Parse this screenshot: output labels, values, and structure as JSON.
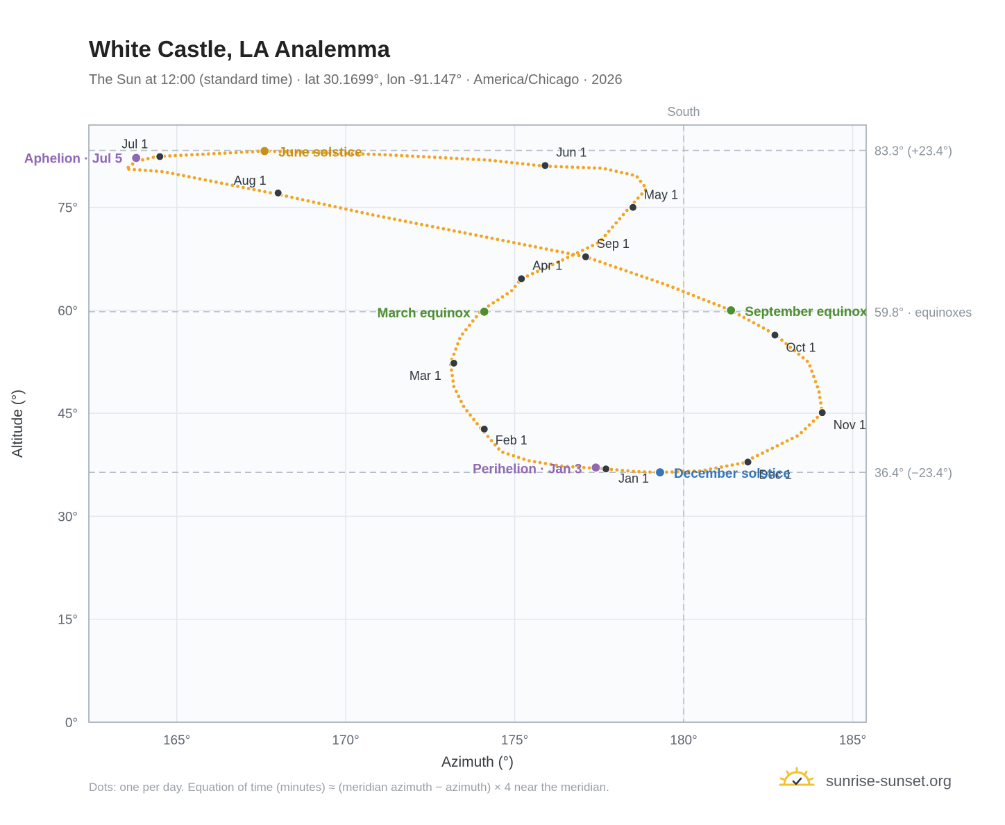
{
  "header": {
    "title": "White Castle, LA Analemma",
    "subtitle": "The Sun at 12:00 (standard time) · lat 30.1699°, lon -91.147° · America/Chicago · 2026"
  },
  "footer": {
    "note": "Dots: one per day. Equation of time (minutes) ≈ (meridian azimuth − azimuth) × 4 near the meridian.",
    "brand": "sunrise-sunset.org",
    "brand_icon": "sun-logo-icon"
  },
  "colors": {
    "curve": "#f2a521",
    "month_marker": "#333a40",
    "solstice_june": "#c8901a",
    "equinox": "#4f8f2f",
    "solstice_december": "#3575b8",
    "apsis": "#8f68b5",
    "plot_background": "#f9fbfd",
    "grid": "#e2e8ee",
    "reference_line": "#b4bec8"
  },
  "chart_data": {
    "type": "scatter",
    "xlabel": "Azimuth (°)",
    "ylabel": "Altitude (°)",
    "xlim": [
      162.4,
      185.4
    ],
    "ylim": [
      0,
      87
    ],
    "x_ticks": [
      165,
      170,
      175,
      180,
      185
    ],
    "x_tick_labels": [
      "165°",
      "170°",
      "175°",
      "180°",
      "185°"
    ],
    "y_ticks": [
      0,
      15,
      30,
      45,
      60,
      75
    ],
    "y_tick_labels": [
      "0°",
      "15°",
      "30°",
      "45°",
      "60°",
      "75°"
    ],
    "grid": true,
    "series": [
      {
        "points": [
          [
            177.7,
            36.9
          ],
          [
            176.4,
            37.3
          ],
          [
            175.4,
            38.1
          ],
          [
            174.6,
            39.4
          ],
          [
            174.0,
            42.8
          ],
          [
            173.5,
            45.9
          ],
          [
            173.2,
            48.9
          ],
          [
            173.1,
            52.3
          ],
          [
            173.4,
            56.2
          ],
          [
            174.0,
            59.9
          ],
          [
            174.9,
            62.8
          ],
          [
            175.2,
            64.6
          ],
          [
            176.4,
            67.3
          ],
          [
            177.5,
            69.9
          ],
          [
            178.4,
            75.0
          ],
          [
            178.9,
            77.7
          ],
          [
            178.6,
            79.6
          ],
          [
            177.6,
            80.7
          ],
          [
            175.9,
            81.0
          ],
          [
            174.2,
            81.9
          ],
          [
            171.0,
            82.7
          ],
          [
            167.6,
            83.2
          ],
          [
            164.4,
            82.4
          ],
          [
            163.8,
            81.7
          ],
          [
            163.5,
            80.6
          ],
          [
            164.6,
            80.2
          ],
          [
            167.9,
            77.0
          ],
          [
            170.8,
            73.9
          ],
          [
            173.6,
            71.2
          ],
          [
            177.1,
            67.8
          ],
          [
            179.5,
            63.7
          ],
          [
            181.4,
            60.0
          ],
          [
            182.7,
            56.5
          ],
          [
            183.7,
            52.4
          ],
          [
            184.0,
            48.3
          ],
          [
            184.1,
            45.1
          ],
          [
            183.4,
            41.8
          ],
          [
            182.0,
            38.4
          ],
          [
            181.9,
            37.9
          ],
          [
            180.5,
            36.6
          ],
          [
            179.3,
            36.4
          ],
          [
            178.6,
            36.5
          ],
          [
            177.7,
            36.9
          ]
        ]
      }
    ],
    "month_markers": [
      {
        "label": "Jan 1",
        "az": 177.7,
        "alt": 36.9
      },
      {
        "label": "Feb 1",
        "az": 174.1,
        "alt": 42.7
      },
      {
        "label": "Mar 1",
        "az": 173.2,
        "alt": 52.3
      },
      {
        "label": "Apr 1",
        "az": 175.2,
        "alt": 64.6
      },
      {
        "label": "May 1",
        "az": 178.5,
        "alt": 75.0
      },
      {
        "label": "Jun 1",
        "az": 175.9,
        "alt": 81.1
      },
      {
        "label": "Jul 1",
        "az": 164.5,
        "alt": 82.4
      },
      {
        "label": "Aug 1",
        "az": 168.0,
        "alt": 77.1
      },
      {
        "label": "Sep 1",
        "az": 177.1,
        "alt": 67.8
      },
      {
        "label": "Oct 1",
        "az": 182.7,
        "alt": 56.4
      },
      {
        "label": "Nov 1",
        "az": 184.1,
        "alt": 45.1
      },
      {
        "label": "Dec 1",
        "az": 181.9,
        "alt": 37.9
      }
    ],
    "events": [
      {
        "label": "June solstice",
        "az": 167.6,
        "alt": 83.2,
        "color": "#c8901a"
      },
      {
        "label": "Aphelion · Jul 5",
        "az": 163.8,
        "alt": 82.2,
        "color": "#8f68b5"
      },
      {
        "label": "March equinox",
        "az": 174.1,
        "alt": 59.8,
        "color": "#4f8f2f"
      },
      {
        "label": "September equinox",
        "az": 181.4,
        "alt": 60.0,
        "color": "#4f8f2f"
      },
      {
        "label": "Perihelion · Jan 3",
        "az": 177.4,
        "alt": 37.1,
        "color": "#8f68b5"
      },
      {
        "label": "December solstice",
        "az": 179.3,
        "alt": 36.4,
        "color": "#3575b8"
      }
    ],
    "reference_lines": [
      {
        "axis": "y",
        "value": 83.3,
        "label": "83.3° (+23.4°)"
      },
      {
        "axis": "y",
        "value": 59.8,
        "label": "59.8° · equinoxes"
      },
      {
        "axis": "y",
        "value": 36.4,
        "label": "36.4° (−23.4°)"
      },
      {
        "axis": "x",
        "value": 180,
        "label": "South"
      }
    ]
  }
}
